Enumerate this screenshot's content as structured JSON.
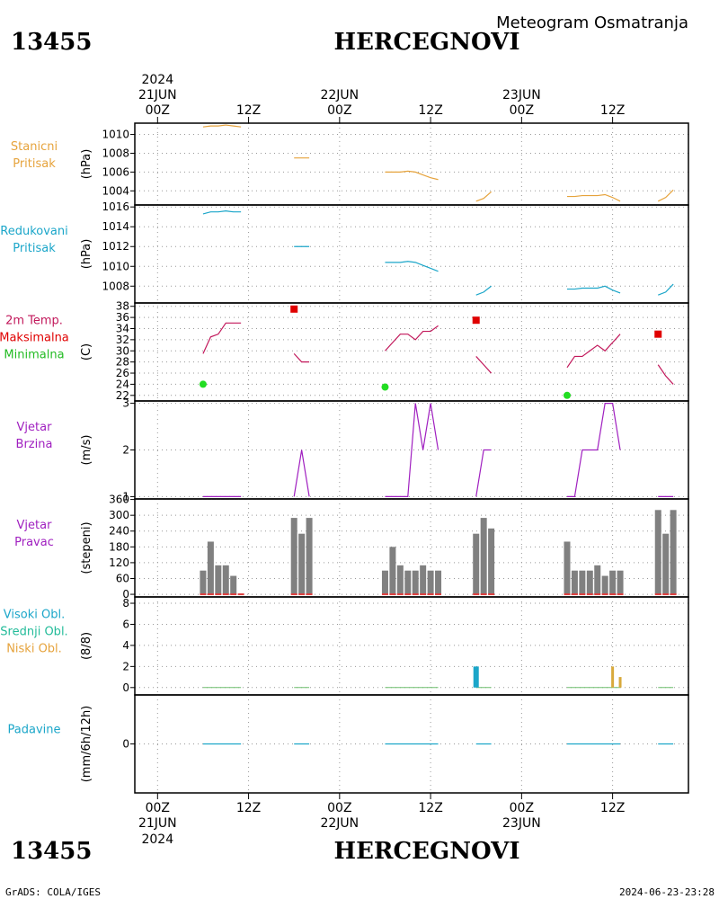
{
  "header": {
    "title_right": "Meteogram Osmatranja",
    "station_id": "13455",
    "station_name": "HERCEGNOVI"
  },
  "footer": {
    "credit": "GrADS: COLA/IGES",
    "timestamp": "2024-06-23-23:28",
    "station_id": "13455",
    "station_name": "HERCEGNOVI"
  },
  "time_axis": {
    "tick_labels": [
      "00Z",
      "12Z",
      "00Z",
      "12Z",
      "00Z",
      "12Z"
    ],
    "date_labels_top": [
      "21JUN",
      "22JUN",
      "23JUN"
    ],
    "year_label": "2024",
    "date_labels_bottom": [
      "21JUN",
      "22JUN",
      "23JUN"
    ],
    "range_hours": [
      -3,
      70
    ]
  },
  "chart_data": [
    {
      "id": "station-pressure",
      "type": "line",
      "label_lines": [
        "Stanicni",
        "Pritisak"
      ],
      "label_colors": [
        "#e6a33c",
        "#e6a33c"
      ],
      "unit": "(hPa)",
      "ylim": [
        1002.5,
        1011.2
      ],
      "yticks": [
        1004,
        1006,
        1008,
        1010
      ],
      "color": "#e6a33c",
      "series": [
        {
          "x": [
            6,
            7,
            8,
            9,
            10,
            11
          ],
          "y": [
            1010.8,
            1010.9,
            1010.9,
            1011.0,
            1010.9,
            1010.8
          ]
        },
        {
          "x": [
            18,
            19,
            20
          ],
          "y": [
            1007.5,
            1007.5,
            1007.5
          ]
        },
        {
          "x": [
            30,
            31,
            32,
            33,
            34,
            35,
            36,
            37
          ],
          "y": [
            1006.0,
            1006.0,
            1006.0,
            1006.1,
            1006.0,
            1005.7,
            1005.4,
            1005.2
          ]
        },
        {
          "x": [
            42,
            43,
            44
          ],
          "y": [
            1002.9,
            1003.2,
            1003.9
          ]
        },
        {
          "x": [
            54,
            55,
            56,
            57,
            58,
            59,
            60,
            61
          ],
          "y": [
            1003.4,
            1003.4,
            1003.5,
            1003.5,
            1003.5,
            1003.6,
            1003.3,
            1002.9
          ]
        },
        {
          "x": [
            66,
            67,
            68
          ],
          "y": [
            1002.9,
            1003.3,
            1004.1
          ]
        }
      ]
    },
    {
      "id": "reduced-pressure",
      "type": "line",
      "label_lines": [
        "Redukovani",
        "Pritisak"
      ],
      "label_colors": [
        "#1ba6c9",
        "#1ba6c9"
      ],
      "unit": "(hPa)",
      "ylim": [
        1006.3,
        1016.2
      ],
      "yticks": [
        1008,
        1010,
        1012,
        1014,
        1016
      ],
      "color": "#1ba6c9",
      "series": [
        {
          "x": [
            6,
            7,
            8,
            9,
            10,
            11
          ],
          "y": [
            1015.3,
            1015.5,
            1015.5,
            1015.6,
            1015.5,
            1015.5
          ]
        },
        {
          "x": [
            18,
            19,
            20
          ],
          "y": [
            1012.0,
            1012.0,
            1012.0
          ]
        },
        {
          "x": [
            30,
            31,
            32,
            33,
            34,
            35,
            36,
            37
          ],
          "y": [
            1010.4,
            1010.4,
            1010.4,
            1010.5,
            1010.4,
            1010.1,
            1009.8,
            1009.5
          ]
        },
        {
          "x": [
            42,
            43,
            44
          ],
          "y": [
            1007.1,
            1007.4,
            1008.0
          ]
        },
        {
          "x": [
            54,
            55,
            56,
            57,
            58,
            59,
            60,
            61
          ],
          "y": [
            1007.7,
            1007.7,
            1007.8,
            1007.8,
            1007.8,
            1008.0,
            1007.6,
            1007.3
          ]
        },
        {
          "x": [
            66,
            67,
            68
          ],
          "y": [
            1007.1,
            1007.4,
            1008.2
          ]
        }
      ]
    },
    {
      "id": "temperature",
      "type": "line",
      "label_lines": [
        "2m Temp.",
        "Maksimalna",
        "Minimalna"
      ],
      "label_colors": [
        "#c2185b",
        "#e00000",
        "#22bb22"
      ],
      "unit": "(C)",
      "ylim": [
        21,
        38.6
      ],
      "yticks": [
        22,
        24,
        26,
        28,
        30,
        32,
        34,
        36,
        38
      ],
      "color": "#c2185b",
      "max_color": "#e00000",
      "min_color": "#22dd22",
      "series": [
        {
          "x": [
            6,
            7,
            8,
            9,
            10,
            11
          ],
          "y": [
            29.5,
            32.5,
            33.0,
            35.0,
            35.0,
            35.0
          ]
        },
        {
          "x": [
            18,
            19,
            20
          ],
          "y": [
            29.5,
            28.0,
            28.0
          ]
        },
        {
          "x": [
            30,
            31,
            32,
            33,
            34,
            35,
            36,
            37
          ],
          "y": [
            30.0,
            31.5,
            33.0,
            33.0,
            32.0,
            33.5,
            33.5,
            34.5
          ]
        },
        {
          "x": [
            42,
            43,
            44
          ],
          "y": [
            29.0,
            27.5,
            26.0
          ]
        },
        {
          "x": [
            54,
            55,
            56,
            57,
            58,
            59,
            60,
            61
          ],
          "y": [
            27.0,
            29.0,
            29.0,
            30.0,
            31.0,
            30.0,
            31.5,
            33.0
          ]
        },
        {
          "x": [
            66,
            67,
            68
          ],
          "y": [
            27.5,
            25.5,
            24.0
          ]
        }
      ],
      "max_points": [
        {
          "x": 18,
          "y": 37.5
        },
        {
          "x": 42,
          "y": 35.5
        },
        {
          "x": 66,
          "y": 33.0
        }
      ],
      "min_points": [
        {
          "x": 6,
          "y": 24.0
        },
        {
          "x": 30,
          "y": 23.5
        },
        {
          "x": 54,
          "y": 22.0
        }
      ]
    },
    {
      "id": "wind-speed",
      "type": "line",
      "label_lines": [
        "Vjetar",
        "Brzina"
      ],
      "label_colors": [
        "#a020c0",
        "#a020c0"
      ],
      "unit": "(m/s)",
      "ylim": [
        0.95,
        3.05
      ],
      "yticks": [
        1,
        2,
        3
      ],
      "color": "#a020c0",
      "series": [
        {
          "x": [
            6,
            7,
            8,
            9,
            10,
            11
          ],
          "y": [
            1,
            1,
            1,
            1,
            1,
            1
          ]
        },
        {
          "x": [
            18,
            19,
            20
          ],
          "y": [
            1,
            2,
            1
          ]
        },
        {
          "x": [
            30,
            31,
            32,
            33,
            34,
            35,
            36,
            37
          ],
          "y": [
            1,
            1,
            1,
            1,
            3,
            2,
            3,
            2
          ]
        },
        {
          "x": [
            42,
            43,
            44
          ],
          "y": [
            1,
            2,
            2
          ]
        },
        {
          "x": [
            54,
            55,
            56,
            57,
            58,
            59,
            60,
            61
          ],
          "y": [
            1,
            1,
            2,
            2,
            2,
            3,
            3,
            2
          ]
        },
        {
          "x": [
            66,
            67,
            68
          ],
          "y": [
            1,
            1,
            1
          ]
        }
      ]
    },
    {
      "id": "wind-direction",
      "type": "bar",
      "label_lines": [
        "Vjetar",
        "Pravac"
      ],
      "label_colors": [
        "#a020c0",
        "#a020c0"
      ],
      "unit": "(stepeni)",
      "ylim": [
        -10,
        362
      ],
      "yticks": [
        0,
        60,
        120,
        180,
        240,
        300,
        360
      ],
      "bar_color": "#808080",
      "base_color": "#e04040",
      "x": [
        6,
        7,
        8,
        9,
        10,
        11,
        18,
        19,
        20,
        30,
        31,
        32,
        33,
        34,
        35,
        36,
        37,
        42,
        43,
        44,
        54,
        55,
        56,
        57,
        58,
        59,
        60,
        61,
        66,
        67,
        68
      ],
      "values": [
        90,
        200,
        110,
        110,
        70,
        0,
        290,
        230,
        290,
        90,
        180,
        110,
        90,
        90,
        110,
        90,
        90,
        230,
        290,
        250,
        200,
        90,
        90,
        90,
        110,
        70,
        90,
        90,
        320,
        230,
        320
      ]
    },
    {
      "id": "cloud-cover",
      "type": "bar",
      "label_lines": [
        "Visoki Obl.",
        "Srednji Obl.",
        "Niski Obl."
      ],
      "label_colors": [
        "#1ba6c9",
        "#22bb99",
        "#e6a33c"
      ],
      "unit": "(8/8)",
      "ylim": [
        -0.7,
        8.6
      ],
      "yticks": [
        0,
        2,
        4,
        6,
        8
      ],
      "zero_line_color": "#6fbf6f",
      "series": [
        {
          "name": "Visoki Obl.",
          "color": "#1ba6c9",
          "x": [
            42
          ],
          "values": [
            2
          ]
        },
        {
          "name": "Niski Obl.",
          "color": "#d8a93c",
          "x": [
            60,
            61
          ],
          "values": [
            2,
            1
          ]
        }
      ]
    },
    {
      "id": "precipitation",
      "type": "line",
      "label_lines": [
        "Padavine"
      ],
      "label_colors": [
        "#1ba6c9"
      ],
      "unit": "(mm/6h/12h)",
      "ylim": [
        -1,
        1
      ],
      "yticks": [
        0
      ],
      "color": "#1ba6c9",
      "series": [
        {
          "x": [
            6,
            11
          ],
          "y": [
            0,
            0
          ]
        },
        {
          "x": [
            18,
            20
          ],
          "y": [
            0,
            0
          ]
        },
        {
          "x": [
            30,
            37
          ],
          "y": [
            0,
            0
          ]
        },
        {
          "x": [
            42,
            44
          ],
          "y": [
            0,
            0
          ]
        },
        {
          "x": [
            54,
            61
          ],
          "y": [
            0,
            0
          ]
        },
        {
          "x": [
            66,
            68
          ],
          "y": [
            0,
            0
          ]
        }
      ]
    }
  ]
}
